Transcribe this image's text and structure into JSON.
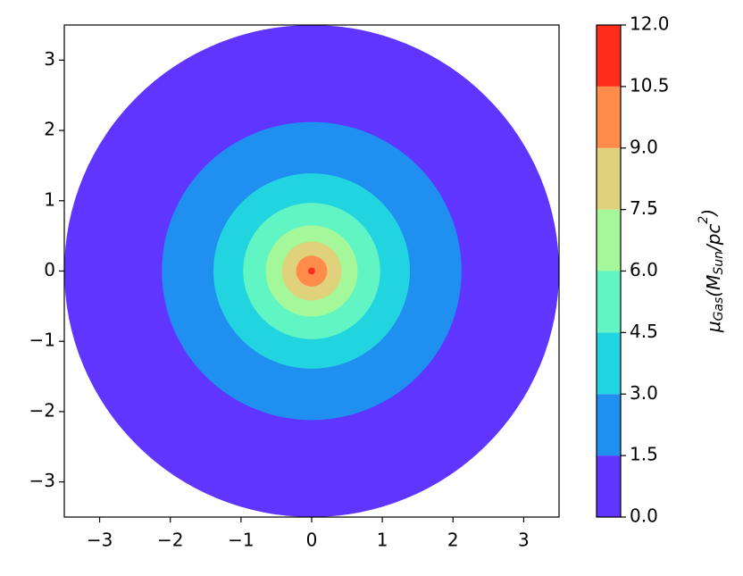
{
  "chart_data": {
    "type": "contour",
    "radii": [
      3.5,
      2.12,
      1.39,
      0.97,
      0.65,
      0.42,
      0.22,
      0.05
    ],
    "colors": [
      "#5f35ff",
      "#1f8ff0",
      "#22d3e0",
      "#60f5c3",
      "#a4f89a",
      "#dfd27a",
      "#ff8c4a",
      "#ff2e1c"
    ],
    "xlim": [
      -3.5,
      3.5
    ],
    "ylim": [
      -3.5,
      3.5
    ],
    "xticks": [
      {
        "value": -3,
        "label": "−3"
      },
      {
        "value": -2,
        "label": "−2"
      },
      {
        "value": -1,
        "label": "−1"
      },
      0,
      1,
      2,
      3
    ],
    "yticks": [
      {
        "value": -3,
        "label": "−3"
      },
      {
        "value": -2,
        "label": "−2"
      },
      {
        "value": -1,
        "label": "−1"
      },
      0,
      1,
      2,
      3
    ],
    "levels": [
      {
        "value": 0,
        "label": "0.0"
      },
      1.5,
      {
        "value": 3,
        "label": "3.0"
      },
      4.5,
      {
        "value": 6,
        "label": "6.0"
      },
      7.5,
      {
        "value": 9,
        "label": "9.0"
      },
      10.5,
      {
        "value": 12,
        "label": "12.0"
      }
    ],
    "colorbar_label": [
      "μ",
      "Gas",
      "(M",
      "Sun",
      "/pc",
      "2",
      ")"
    ]
  }
}
